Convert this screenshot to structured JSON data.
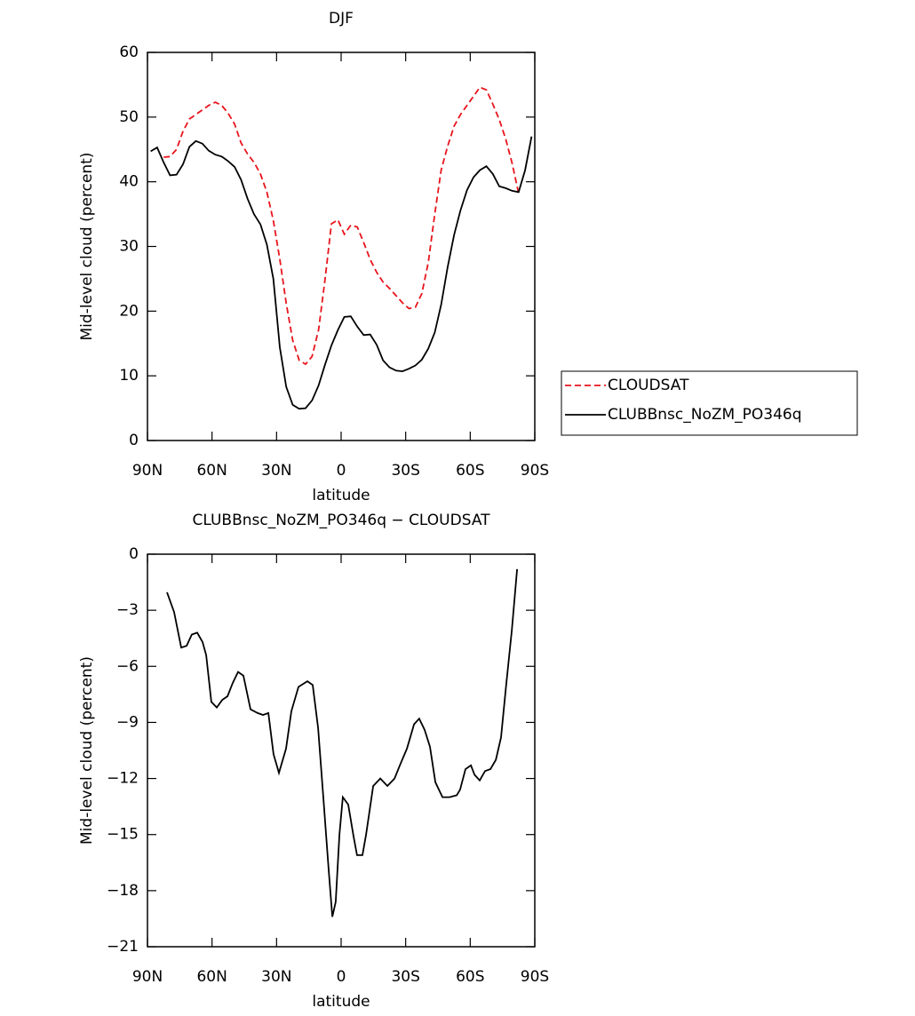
{
  "chart_data": [
    {
      "type": "line",
      "title": "DJF",
      "x_label": "latitude",
      "y_label": "Mid-level cloud (percent)",
      "xlim": [
        90,
        -90
      ],
      "xticks": [
        {
          "value": 90,
          "label": "90N"
        },
        {
          "value": 60,
          "label": "60N"
        },
        {
          "value": 30,
          "label": "30N"
        },
        0,
        {
          "value": -30,
          "label": "30S"
        },
        {
          "value": -60,
          "label": "60S"
        },
        {
          "value": -90,
          "label": "90S"
        }
      ],
      "ylim": [
        0,
        60
      ],
      "yticks": [
        0,
        10,
        20,
        30,
        40,
        50,
        60
      ],
      "legend": "right",
      "x": [
        88.5,
        85.5,
        82.5,
        79.5,
        76.5,
        73.5,
        70.5,
        67.5,
        64.5,
        61.5,
        58.5,
        55.5,
        52.5,
        49.5,
        46.5,
        43.5,
        40.5,
        37.5,
        34.5,
        31.5,
        28.5,
        25.5,
        22.5,
        19.5,
        16.5,
        13.5,
        10.5,
        7.5,
        4.5,
        1.5,
        -1.5,
        -4.5,
        -7.5,
        -10.5,
        -13.5,
        -16.5,
        -19.5,
        -22.5,
        -25.5,
        -28.5,
        -31.5,
        -34.5,
        -37.5,
        -40.5,
        -43.5,
        -46.5,
        -49.5,
        -52.5,
        -55.5,
        -58.5,
        -61.5,
        -64.5,
        -67.5,
        -70.5,
        -73.5,
        -76.5,
        -79.5,
        -82.5,
        -85.5,
        -88.5
      ],
      "series": [
        {
          "name": "CLOUDSAT",
          "color": "#e8141c",
          "dashed": true,
          "values": [
            null,
            null,
            43.8,
            43.9,
            45.0,
            47.8,
            49.7,
            50.4,
            51.1,
            51.8,
            52.3,
            51.8,
            50.6,
            48.9,
            46.0,
            44.3,
            43.0,
            41.2,
            38.4,
            34.0,
            28.0,
            21.2,
            15.5,
            12.4,
            11.8,
            13.0,
            17.1,
            24.8,
            33.5,
            34.1,
            31.9,
            33.3,
            33.0,
            30.6,
            28.0,
            26.0,
            24.5,
            23.5,
            22.4,
            21.3,
            20.4,
            20.6,
            22.7,
            27.5,
            35.0,
            41.8,
            45.5,
            48.6,
            50.4,
            51.8,
            53.2,
            54.6,
            54.2,
            52.0,
            49.6,
            46.6,
            42.8,
            38.2,
            null,
            null
          ]
        },
        {
          "name": "CLUBBnsc_NoZM_PO346q",
          "color": "#000000",
          "dashed": false,
          "values": [
            44.7,
            45.3,
            43.0,
            41.0,
            41.1,
            42.7,
            45.4,
            46.3,
            45.9,
            44.8,
            44.2,
            43.9,
            43.2,
            42.3,
            40.3,
            37.4,
            35.0,
            33.4,
            30.3,
            25.0,
            14.4,
            8.3,
            5.5,
            4.9,
            5.0,
            6.2,
            8.5,
            11.7,
            14.7,
            17.1,
            19.1,
            19.2,
            17.6,
            16.3,
            16.4,
            14.8,
            12.4,
            11.3,
            10.8,
            10.7,
            11.1,
            11.6,
            12.5,
            14.2,
            16.7,
            21.0,
            26.8,
            31.8,
            35.6,
            38.7,
            40.7,
            41.8,
            42.4,
            41.2,
            39.3,
            39.0,
            38.6,
            38.4,
            41.8,
            47.0
          ]
        }
      ]
    },
    {
      "type": "line",
      "title": "CLUBBnsc_NoZM_PO346q − CLOUDSAT",
      "x_label": "latitude",
      "y_label": "Mid-level cloud (percent)",
      "xlim": [
        90,
        -90
      ],
      "xticks": [
        {
          "value": 90,
          "label": "90N"
        },
        {
          "value": 60,
          "label": "60N"
        },
        {
          "value": 30,
          "label": "30N"
        },
        0,
        {
          "value": -30,
          "label": "30S"
        },
        {
          "value": -60,
          "label": "60S"
        },
        {
          "value": -90,
          "label": "90S"
        }
      ],
      "ylim": [
        -21,
        0
      ],
      "yticks": [
        {
          "value": -21,
          "label": "−21"
        },
        {
          "value": -18,
          "label": "−18"
        },
        {
          "value": -15,
          "label": "−15"
        },
        {
          "value": -12,
          "label": "−12"
        },
        {
          "value": -9,
          "label": "−9"
        },
        {
          "value": -6,
          "label": "−6"
        },
        {
          "value": -3,
          "label": "−3"
        },
        0
      ],
      "x": [
        80.9,
        77.6,
        74.3,
        71.8,
        69.4,
        66.9,
        64.4,
        62.7,
        60.3,
        57.8,
        55.3,
        52.8,
        50.4,
        47.9,
        45.4,
        42.1,
        38.8,
        36.3,
        33.8,
        31.4,
        28.9,
        25.6,
        23.1,
        19.8,
        15.7,
        13.2,
        10.7,
        8.2,
        5.8,
        4.1,
        2.5,
        0.8,
        -0.8,
        -3.3,
        -5.8,
        -7.4,
        -9.9,
        -11.6,
        -14.9,
        -18.2,
        -21.5,
        -24.8,
        -27.3,
        -30.6,
        -33.9,
        -36.3,
        -38.8,
        -41.3,
        -43.8,
        -47.1,
        -50.4,
        -53.7,
        -55.3,
        -57.8,
        -60.3,
        -62.0,
        -64.4,
        -66.9,
        -69.4,
        -71.9,
        -74.3,
        -76.8,
        -79.3,
        -81.8
      ],
      "series": [
        {
          "color": "#000000",
          "dashed": false,
          "values": [
            -2.04,
            -3.1,
            -5.0,
            -4.9,
            -4.3,
            -4.2,
            -4.7,
            -5.4,
            -7.9,
            -8.2,
            -7.8,
            -7.6,
            -6.9,
            -6.3,
            -6.5,
            -8.3,
            -8.5,
            -8.6,
            -8.5,
            -10.7,
            -11.7,
            -10.4,
            -8.4,
            -7.1,
            -6.8,
            -7.0,
            -9.3,
            -13.1,
            -16.9,
            -19.4,
            -18.6,
            -15.0,
            -13.0,
            -13.4,
            -15.1,
            -16.1,
            -16.1,
            -15.0,
            -12.4,
            -12.0,
            -12.4,
            -12.0,
            -11.3,
            -10.4,
            -9.1,
            -8.8,
            -9.4,
            -10.3,
            -12.2,
            -13.0,
            -13.0,
            -12.9,
            -12.6,
            -11.5,
            -11.3,
            -11.8,
            -12.1,
            -11.6,
            -11.5,
            -11.0,
            -9.8,
            -6.9,
            -4.1,
            -0.8
          ]
        }
      ]
    }
  ]
}
